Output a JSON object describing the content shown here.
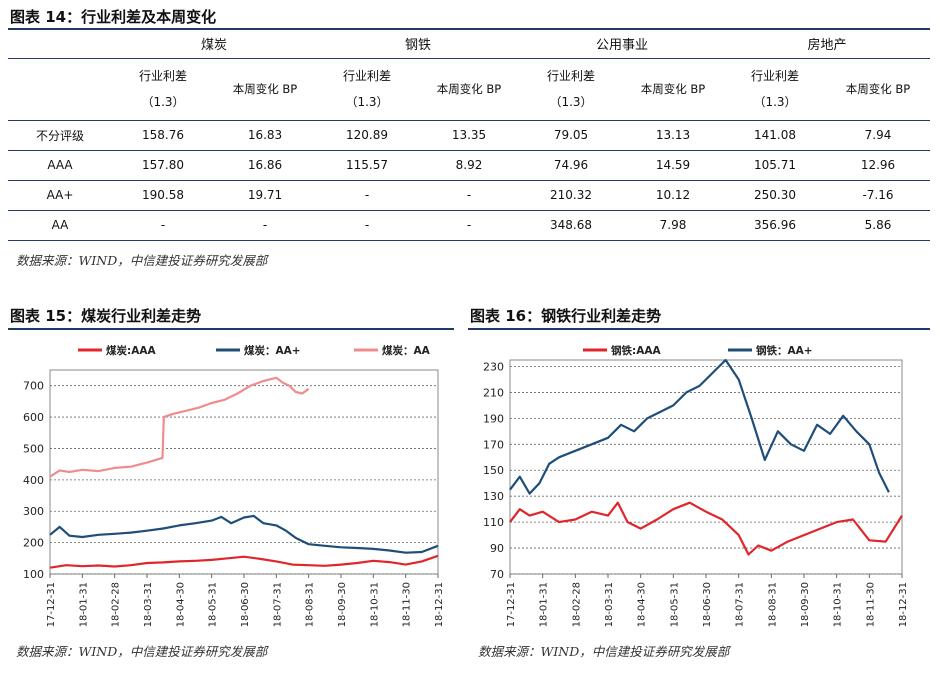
{
  "table": {
    "title": "图表 14：行业利差及本周变化",
    "groups": [
      "煤炭",
      "钢铁",
      "公用事业",
      "房地产"
    ],
    "sub_spread": "行业利差",
    "sub_spread_note": "（1.3）",
    "sub_change": "本周变化 BP",
    "rows": [
      {
        "label": "不分评级",
        "cells": [
          "158.76",
          "16.83",
          "120.89",
          "13.35",
          "79.05",
          "13.13",
          "141.08",
          "7.94"
        ]
      },
      {
        "label": "AAA",
        "cells": [
          "157.80",
          "16.86",
          "115.57",
          "8.92",
          "74.96",
          "14.59",
          "105.71",
          "12.96"
        ]
      },
      {
        "label": "AA+",
        "cells": [
          "190.58",
          "19.71",
          "-",
          "-",
          "210.32",
          "10.12",
          "250.30",
          "-7.16"
        ]
      },
      {
        "label": "AA",
        "cells": [
          "-",
          "-",
          "-",
          "-",
          "348.68",
          "7.98",
          "356.96",
          "5.86"
        ]
      }
    ],
    "source": "数据来源：WIND，中信建投证券研究发展部"
  },
  "chart_data": [
    {
      "type": "line",
      "title": "图表 15：煤炭行业利差走势",
      "source": "数据来源：WIND，中信建投证券研究发展部",
      "x_ticks": [
        "17-12-31",
        "18-01-31",
        "18-02-28",
        "18-03-31",
        "18-04-30",
        "18-05-31",
        "18-06-30",
        "18-07-31",
        "18-08-31",
        "18-09-30",
        "18-10-31",
        "18-11-30",
        "18-12-31"
      ],
      "y_ticks": [
        100,
        200,
        300,
        400,
        500,
        600,
        700
      ],
      "ylim": [
        100,
        750
      ],
      "grid": true,
      "legend_position": "top",
      "series": [
        {
          "name": "煤炭:AAA",
          "color": "#e0262b",
          "x": [
            0,
            0.5,
            1,
            1.5,
            2,
            2.5,
            3,
            3.5,
            4,
            4.5,
            5,
            5.5,
            6,
            6.5,
            7,
            7.5,
            8,
            8.5,
            9,
            9.5,
            10,
            10.5,
            11,
            11.5,
            12
          ],
          "y": [
            120,
            128,
            125,
            127,
            124,
            128,
            135,
            137,
            140,
            142,
            145,
            150,
            155,
            148,
            140,
            130,
            128,
            126,
            130,
            135,
            142,
            138,
            130,
            140,
            158
          ]
        },
        {
          "name": "煤炭：AA+",
          "color": "#1f4e79",
          "x": [
            0,
            0.3,
            0.6,
            1,
            1.5,
            2,
            2.5,
            3,
            3.5,
            4,
            4.5,
            5,
            5.3,
            5.6,
            6,
            6.3,
            6.6,
            7,
            7.3,
            7.6,
            8,
            8.5,
            9,
            9.5,
            10,
            10.5,
            11,
            11.5,
            12
          ],
          "y": [
            225,
            250,
            222,
            218,
            225,
            228,
            232,
            238,
            245,
            255,
            262,
            270,
            282,
            262,
            280,
            285,
            262,
            255,
            238,
            215,
            195,
            190,
            185,
            183,
            180,
            175,
            168,
            170,
            190
          ]
        },
        {
          "name": "煤炭：AA",
          "color": "#f08c8c",
          "x": [
            0,
            0.3,
            0.6,
            1,
            1.5,
            2,
            2.5,
            3,
            3.48,
            3.52,
            3.8,
            4.2,
            4.6,
            5,
            5.4,
            5.8,
            6.2,
            6.6,
            7,
            7.2,
            7.4,
            7.6,
            7.8,
            8
          ],
          "y": [
            410,
            430,
            425,
            432,
            428,
            438,
            442,
            455,
            470,
            600,
            610,
            620,
            630,
            645,
            655,
            675,
            700,
            715,
            725,
            710,
            700,
            680,
            675,
            690
          ]
        }
      ]
    },
    {
      "type": "line",
      "title": "图表 16：钢铁行业利差走势",
      "source": "数据来源：WIND，中信建投证券研究发展部",
      "x_ticks": [
        "17-12-31",
        "18-01-31",
        "18-02-28",
        "18-03-31",
        "18-04-30",
        "18-05-31",
        "18-06-30",
        "18-07-31",
        "18-08-31",
        "18-09-30",
        "18-10-31",
        "18-11-30",
        "18-12-31"
      ],
      "y_ticks": [
        70,
        90,
        110,
        130,
        150,
        170,
        190,
        210,
        230
      ],
      "ylim": [
        70,
        235
      ],
      "grid": true,
      "legend_position": "top",
      "series": [
        {
          "name": "钢铁:AAA",
          "color": "#e0262b",
          "x": [
            0,
            0.3,
            0.6,
            1,
            1.5,
            2,
            2.5,
            3,
            3.3,
            3.6,
            4,
            4.5,
            5,
            5.5,
            6,
            6.5,
            7,
            7.3,
            7.6,
            8,
            8.5,
            9,
            9.5,
            10,
            10.5,
            11,
            11.5,
            12
          ],
          "y": [
            110,
            120,
            115,
            118,
            110,
            112,
            118,
            115,
            125,
            110,
            105,
            112,
            120,
            125,
            118,
            112,
            100,
            85,
            92,
            88,
            95,
            100,
            105,
            110,
            112,
            96,
            95,
            115
          ]
        },
        {
          "name": "钢铁：AA+",
          "color": "#1f4e79",
          "x": [
            0,
            0.3,
            0.6,
            0.9,
            1.2,
            1.5,
            2,
            2.5,
            3,
            3.4,
            3.8,
            4.2,
            4.6,
            5,
            5.4,
            5.8,
            6.2,
            6.6,
            7,
            7.4,
            7.8,
            8.2,
            8.6,
            9,
            9.4,
            9.8,
            10.2,
            10.6,
            11,
            11.3,
            11.6
          ],
          "y": [
            135,
            145,
            132,
            140,
            155,
            160,
            165,
            170,
            175,
            185,
            180,
            190,
            195,
            200,
            210,
            215,
            225,
            235,
            220,
            190,
            158,
            180,
            170,
            165,
            185,
            178,
            192,
            180,
            170,
            148,
            133
          ]
        }
      ]
    }
  ]
}
